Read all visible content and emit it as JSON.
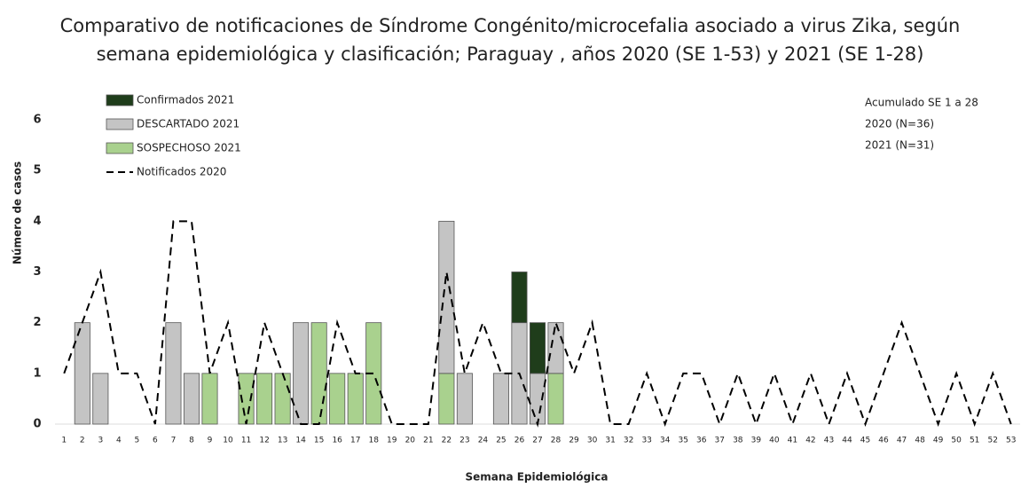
{
  "chart_data": {
    "type": "bar",
    "stacked": true,
    "title": [
      "Comparativo de notificaciones de Síndrome Congénito/microcefalia asociado a virus Zika,  según",
      "semana epidemiológica y clasificación;  Paraguay , años  2020  (SE 1-53) y 2021  (SE 1-28)"
    ],
    "x_label": "Semana Epidemiológica",
    "y_label": "Número de casos",
    "annotation": [
      "Acumulado SE 1 a 28",
      "2020 (N=36)",
      "2021 (N=31)"
    ],
    "categories": [
      "1",
      "2",
      "3",
      "4",
      "5",
      "6",
      "7",
      "8",
      "9",
      "10",
      "11",
      "12",
      "13",
      "14",
      "15",
      "16",
      "17",
      "18",
      "19",
      "20",
      "21",
      "22",
      "23",
      "24",
      "25",
      "26",
      "27",
      "28",
      "29",
      "30",
      "31",
      "32",
      "33",
      "34",
      "35",
      "36",
      "37",
      "38",
      "39",
      "40",
      "41",
      "42",
      "43",
      "44",
      "45",
      "46",
      "47",
      "48",
      "49",
      "50",
      "51",
      "52",
      "53"
    ],
    "ylim": [
      0,
      6
    ],
    "yticks": [
      0,
      1,
      2,
      3,
      4,
      5,
      6
    ],
    "grid": false,
    "legend": "top-left",
    "series": [
      {
        "name": "SOSPECHOSO 2021",
        "type": "bar",
        "color": "#a9d18e",
        "values": [
          0,
          0,
          0,
          0,
          0,
          0,
          0,
          0,
          1,
          0,
          1,
          1,
          1,
          0,
          2,
          1,
          1,
          2,
          0,
          0,
          0,
          1,
          0,
          0,
          0,
          0,
          0,
          1,
          null,
          null,
          null,
          null,
          null,
          null,
          null,
          null,
          null,
          null,
          null,
          null,
          null,
          null,
          null,
          null,
          null,
          null,
          null,
          null,
          null,
          null,
          null,
          null,
          null
        ]
      },
      {
        "name": "DESCARTADO 2021",
        "type": "bar",
        "color": "#c4c4c4",
        "values": [
          0,
          2,
          1,
          0,
          0,
          0,
          2,
          1,
          0,
          0,
          0,
          0,
          0,
          2,
          0,
          0,
          0,
          0,
          0,
          0,
          0,
          3,
          1,
          0,
          1,
          2,
          1,
          1,
          null,
          null,
          null,
          null,
          null,
          null,
          null,
          null,
          null,
          null,
          null,
          null,
          null,
          null,
          null,
          null,
          null,
          null,
          null,
          null,
          null,
          null,
          null,
          null,
          null
        ]
      },
      {
        "name": "Confirmados 2021",
        "type": "bar",
        "color": "#1f3d1b",
        "values": [
          0,
          0,
          0,
          0,
          0,
          0,
          0,
          0,
          0,
          0,
          0,
          0,
          0,
          0,
          0,
          0,
          0,
          0,
          0,
          0,
          0,
          0,
          0,
          0,
          0,
          1,
          1,
          0,
          null,
          null,
          null,
          null,
          null,
          null,
          null,
          null,
          null,
          null,
          null,
          null,
          null,
          null,
          null,
          null,
          null,
          null,
          null,
          null,
          null,
          null,
          null,
          null,
          null
        ]
      },
      {
        "name": "Notificados  2020",
        "type": "line",
        "dashed": true,
        "color": "#000000",
        "values": [
          1,
          2,
          3,
          1,
          1,
          0,
          4,
          4,
          1,
          2,
          0,
          2,
          1,
          0,
          0,
          2,
          1,
          1,
          0,
          0,
          0,
          3,
          1,
          2,
          1,
          1,
          0,
          2,
          1,
          2,
          0,
          0,
          1,
          0,
          1,
          1,
          0,
          1,
          0,
          1,
          0,
          1,
          0,
          1,
          0,
          1,
          2,
          1,
          0,
          1,
          0,
          1,
          0
        ]
      }
    ]
  }
}
